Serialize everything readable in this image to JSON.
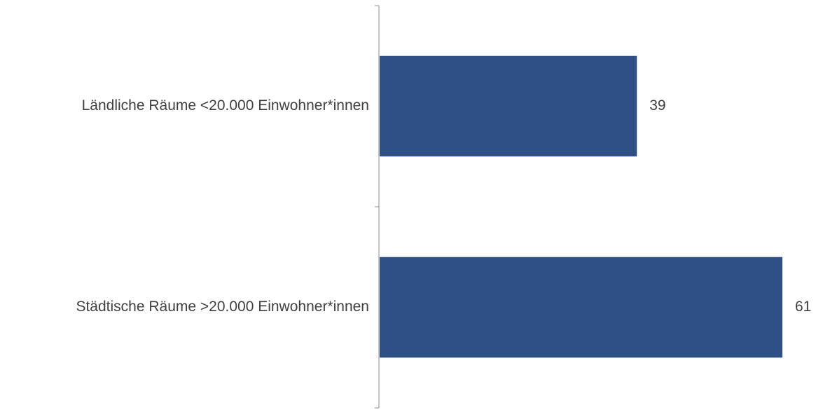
{
  "chart_data": {
    "type": "bar",
    "orientation": "horizontal",
    "categories": [
      "Ländliche Räume <20.000 Einwohner*innen",
      "Städtische Räume >20.000 Einwohner*innen"
    ],
    "values": [
      39,
      61
    ],
    "data_labels": [
      "39",
      "61"
    ],
    "title": "",
    "xlabel": "",
    "ylabel": "",
    "xlim": [
      0,
      61
    ],
    "grid": false,
    "legend": "none",
    "bar_color": "#2f5084"
  }
}
